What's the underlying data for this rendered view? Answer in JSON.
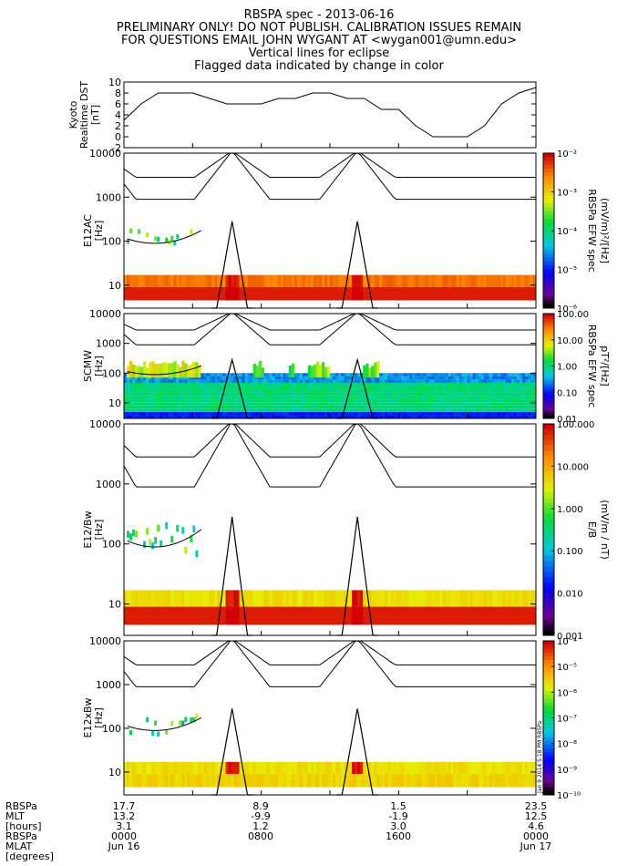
{
  "header": {
    "title": "RBSPA spec - 2013-06-16",
    "line2": "PRELIMINARY ONLY! DO NOT PUBLISH. CALIBRATION ISSUES REMAIN",
    "line3": "FOR QUESTIONS EMAIL JOHN WYGANT AT <wygan001@umn.edu>",
    "line4": "Vertical lines for eclipse",
    "line5": "Flagged data indicated by change in color"
  },
  "chart_data": [
    {
      "type": "line",
      "panel": "dst",
      "ylabel": [
        "Kyoto",
        "Realtime DST",
        "[nT]"
      ],
      "yticks": [
        "10",
        "8",
        "6",
        "4",
        "2",
        "0",
        "-2"
      ],
      "ylim": [
        -2,
        10
      ],
      "xlim_hours": [
        0,
        24
      ],
      "x_hours": [
        0,
        1,
        2,
        3,
        4,
        5,
        6,
        7,
        8,
        9,
        10,
        11,
        12,
        13,
        14,
        15,
        16,
        17,
        18,
        19,
        20,
        21,
        22,
        23,
        24
      ],
      "y": [
        3,
        6,
        8,
        8,
        8,
        7,
        6,
        6,
        6,
        7,
        7,
        8,
        8,
        7,
        7,
        5,
        5,
        2,
        0,
        0,
        0,
        2,
        6,
        8,
        9
      ]
    },
    {
      "type": "heatmap",
      "panel": "e12ac",
      "ylabel": [
        "E12AC",
        "[Hz]"
      ],
      "yticks": [
        "10000",
        "1000",
        "100",
        "10"
      ],
      "ylim_hz": [
        3,
        10000
      ],
      "yscale": "log",
      "colorbar": {
        "ticks": [
          "10⁻²",
          "10⁻³",
          "10⁻⁴",
          "10⁻⁵",
          "10⁻⁶"
        ],
        "label": "RBSPa EFW spec",
        "unit": "(mV/m)²/[Hz]",
        "range": [
          1e-06,
          0.01
        ],
        "scale": "log"
      }
    },
    {
      "type": "heatmap",
      "panel": "scmw",
      "ylabel": [
        "SCMW",
        "[Hz]"
      ],
      "yticks": [
        "10000",
        "1000",
        "100",
        "10"
      ],
      "ylim_hz": [
        3,
        10000
      ],
      "yscale": "log",
      "colorbar": {
        "ticks": [
          "100.00",
          "10.00",
          "1.00",
          "0.10",
          "0.01"
        ],
        "label": "RBSPa EFW spec",
        "unit": "pT²/[Hz]",
        "range": [
          0.01,
          100
        ],
        "scale": "log"
      }
    },
    {
      "type": "heatmap",
      "panel": "e12bw",
      "ylabel": [
        "E12/Bw",
        "[Hz]"
      ],
      "yticks": [
        "10000",
        "1000",
        "100",
        "10"
      ],
      "ylim_hz": [
        3,
        10000
      ],
      "yscale": "log",
      "colorbar": {
        "ticks": [
          "100.000",
          "10.000",
          "1.000",
          "0.100",
          "0.010",
          "0.001"
        ],
        "label": "E/B",
        "unit": "(mV/m / nT)",
        "range": [
          0.001,
          100
        ],
        "scale": "log"
      }
    },
    {
      "type": "heatmap",
      "panel": "e12xbw",
      "ylabel": [
        "E12xBw",
        "[Hz]"
      ],
      "yticks": [
        "10000",
        "1000",
        "100",
        "10"
      ],
      "ylim_hz": [
        3,
        10000
      ],
      "yscale": "log",
      "colorbar": {
        "ticks": [
          "10⁻⁴",
          "10⁻⁵",
          "10⁻⁶",
          "10⁻⁷",
          "10⁻⁸",
          "10⁻⁹",
          "10⁻¹⁰"
        ],
        "label": "",
        "unit": "",
        "range": [
          1e-10,
          0.0001
        ],
        "scale": "log"
      }
    }
  ],
  "footer": {
    "row_labels": [
      "RBSPa",
      "MLT",
      "[hours]",
      "RBSPa",
      "MLAT",
      "[degrees]"
    ],
    "columns": [
      {
        "hour": 0,
        "values": [
          "17.7",
          "13.2",
          "3.1",
          "0000",
          "Jun 16"
        ]
      },
      {
        "hour": 8,
        "values": [
          "8.9",
          "-9.9",
          "1.2",
          "0800",
          ""
        ]
      },
      {
        "hour": 16,
        "values": [
          "1.5",
          "-1.9",
          "3.0",
          "1600",
          ""
        ]
      },
      {
        "hour": 24,
        "values": [
          "23.5",
          "12.5",
          "4.6",
          "0000",
          "Jun 17"
        ]
      }
    ]
  },
  "stamp": "Jan 9 2014 5:18 PM  RBSPa",
  "colors": {
    "axis": "#000000",
    "background": "#ffffff"
  }
}
